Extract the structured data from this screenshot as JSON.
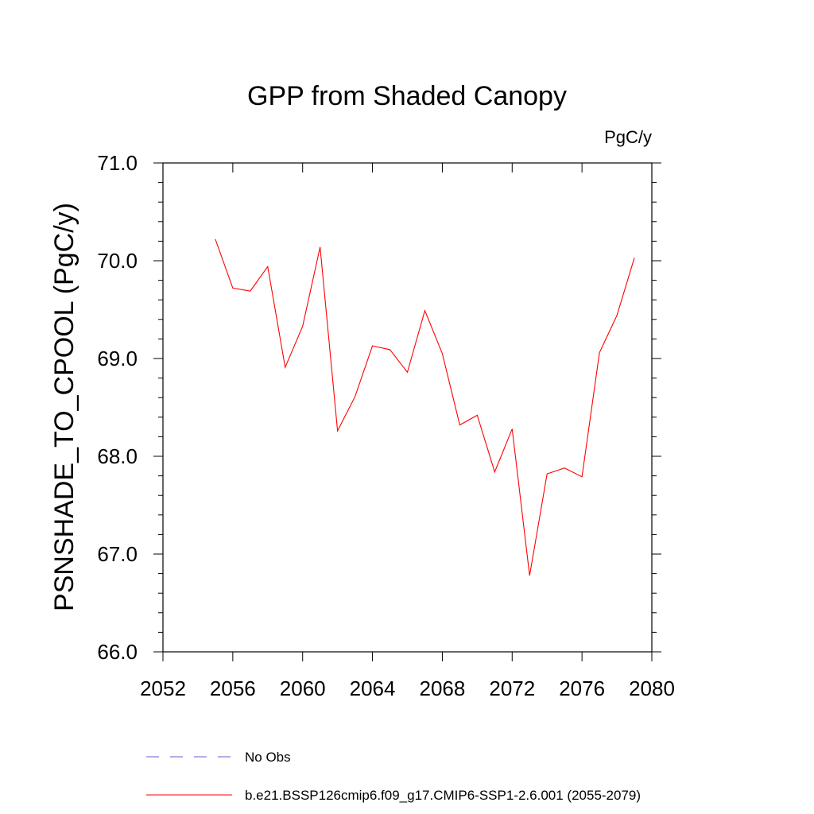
{
  "chart_data": {
    "type": "line",
    "title": "GPP from Shaded Canopy",
    "units": "PgC/y",
    "ylabel": "PSNSHADE_TO_CPOOL  (PgC/y)",
    "xlabel": "",
    "xlim": [
      2052,
      2080
    ],
    "ylim": [
      66.0,
      71.0
    ],
    "x_ticks": [
      2052,
      2056,
      2060,
      2064,
      2068,
      2072,
      2076,
      2080
    ],
    "x_tick_labels": [
      "2052",
      "2056",
      "2060",
      "2064",
      "2068",
      "2072",
      "2076",
      "2080"
    ],
    "y_ticks": [
      66.0,
      67.0,
      68.0,
      69.0,
      70.0,
      71.0
    ],
    "y_tick_labels": [
      "66.0",
      "67.0",
      "68.0",
      "69.0",
      "70.0",
      "71.0"
    ],
    "grid": false,
    "legend_position": "bottom",
    "series": [
      {
        "name": "b.e21.BSSP126cmip6.f09_g17.CMIP6-SSP1-2.6.001 (2055-2079)",
        "color": "#ff0000",
        "style": "solid",
        "x": [
          2055,
          2056,
          2057,
          2058,
          2059,
          2060,
          2061,
          2062,
          2063,
          2064,
          2065,
          2066,
          2067,
          2068,
          2069,
          2070,
          2071,
          2072,
          2073,
          2074,
          2075,
          2076,
          2077,
          2078,
          2079
        ],
        "y": [
          70.22,
          69.72,
          69.69,
          69.94,
          68.91,
          69.33,
          70.14,
          68.26,
          68.61,
          69.13,
          69.09,
          68.86,
          69.49,
          69.05,
          68.32,
          68.42,
          67.84,
          68.28,
          66.78,
          67.82,
          67.88,
          67.79,
          69.06,
          69.44,
          70.03
        ]
      }
    ],
    "legend": [
      {
        "label": "No Obs",
        "color": "#6a5acd",
        "style": "dashed"
      },
      {
        "label": "b.e21.BSSP126cmip6.f09_g17.CMIP6-SSP1-2.6.001 (2055-2079)",
        "color": "#ff0000",
        "style": "solid"
      }
    ]
  }
}
